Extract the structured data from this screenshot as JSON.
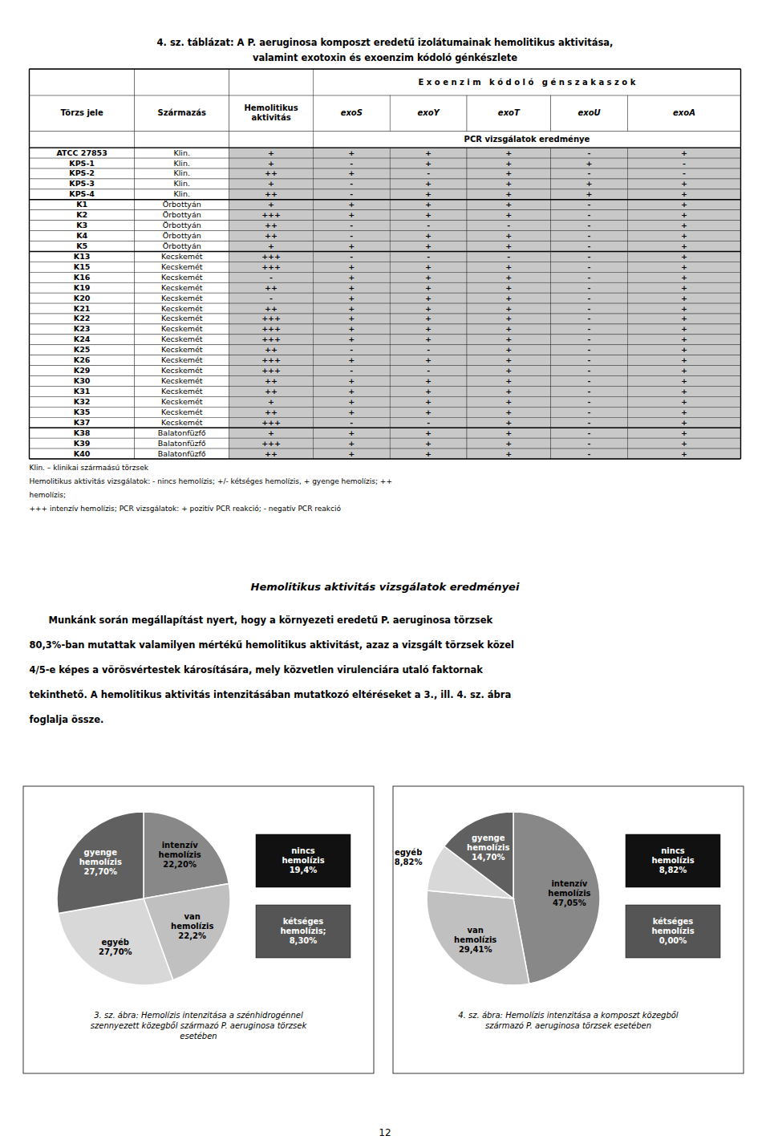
{
  "chart_data": [
    {
      "type": "table",
      "title": "4. sz. táblázat: A P. aeruginosa komposzt eredetű izolátumainak hemolitikus aktivitása,",
      "subtitle": "valamint exotoxin és exoenzim kódoló génkészlete",
      "group_header": "E x o e n z i m   k ó d o l ó   g é n s z a k a s z o k",
      "columns": [
        "Törzs jele",
        "Származás",
        "Hemolitikus\naktivitás",
        "exoS",
        "exoY",
        "exoT",
        "exoU",
        "exoA"
      ],
      "subheader": "PCR vizsgálatok eredménye",
      "rows": [
        [
          "ATCC 27853",
          "Klin.",
          "+",
          "+",
          "+",
          "+",
          "-",
          "+"
        ],
        [
          "KPS-1",
          "Klin.",
          "+",
          "-",
          "+",
          "+",
          "+",
          "-"
        ],
        [
          "KPS-2",
          "Klin.",
          "++",
          "+",
          "-",
          "+",
          "-",
          "-"
        ],
        [
          "KPS-3",
          "Klin.",
          "+",
          "-",
          "+",
          "+",
          "+",
          "+"
        ],
        [
          "KPS-4",
          "Klin.",
          "++",
          "-",
          "+",
          "+",
          "+",
          "+"
        ],
        [
          "K1",
          "Örbottyán",
          "+",
          "+",
          "+",
          "+",
          "-",
          "+"
        ],
        [
          "K2",
          "Örbottyán",
          "+++",
          "+",
          "+",
          "+",
          "-",
          "+"
        ],
        [
          "K3",
          "Örbottyán",
          "++",
          "-",
          "-",
          "-",
          "-",
          "+"
        ],
        [
          "K4",
          "Örbottyán",
          "++",
          "-",
          "+",
          "+",
          "-",
          "+"
        ],
        [
          "K5",
          "Örbottyán",
          "+",
          "+",
          "+",
          "+",
          "-",
          "+"
        ],
        [
          "K13",
          "Kecskemét",
          "+++",
          "-",
          "-",
          "-",
          "-",
          "+"
        ],
        [
          "K15",
          "Kecskemét",
          "+++",
          "+",
          "+",
          "+",
          "-",
          "+"
        ],
        [
          "K16",
          "Kecskemét",
          "-",
          "+",
          "+",
          "+",
          "-",
          "+"
        ],
        [
          "K19",
          "Kecskemét",
          "++",
          "+",
          "+",
          "+",
          "-",
          "+"
        ],
        [
          "K20",
          "Kecskemét",
          "-",
          "+",
          "+",
          "+",
          "-",
          "+"
        ],
        [
          "K21",
          "Kecskemét",
          "++",
          "+",
          "+",
          "+",
          "-",
          "+"
        ],
        [
          "K22",
          "Kecskemét",
          "+++",
          "+",
          "+",
          "+",
          "-",
          "+"
        ],
        [
          "K23",
          "Kecskemét",
          "+++",
          "+",
          "+",
          "+",
          "-",
          "+"
        ],
        [
          "K24",
          "Kecskemét",
          "+++",
          "+",
          "+",
          "+",
          "-",
          "+"
        ],
        [
          "K25",
          "Kecskemét",
          "++",
          "-",
          "-",
          "+",
          "-",
          "+"
        ],
        [
          "K26",
          "Kecskemét",
          "+++",
          "+",
          "+",
          "+",
          "-",
          "+"
        ],
        [
          "K29",
          "Kecskemét",
          "+++",
          "-",
          "-",
          "+",
          "-",
          "+"
        ],
        [
          "K30",
          "Kecskemét",
          "++",
          "+",
          "+",
          "+",
          "-",
          "+"
        ],
        [
          "K31",
          "Kecskemét",
          "++",
          "+",
          "+",
          "+",
          "-",
          "+"
        ],
        [
          "K32",
          "Kecskemét",
          "+",
          "+",
          "+",
          "+",
          "-",
          "+"
        ],
        [
          "K35",
          "Kecskemét",
          "++",
          "+",
          "+",
          "+",
          "-",
          "+"
        ],
        [
          "K37",
          "Kecskemét",
          "+++",
          "-",
          "-",
          "+",
          "-",
          "+"
        ],
        [
          "K38",
          "Balatonfüzfő",
          "+",
          "+",
          "+",
          "+",
          "-",
          "+"
        ],
        [
          "K39",
          "Balatonfüzfő",
          "+++",
          "+",
          "+",
          "+",
          "-",
          "+"
        ],
        [
          "K40",
          "Balatonfüzfő",
          "++",
          "+",
          "+",
          "+",
          "-",
          "+"
        ]
      ],
      "color": "#c8c8c8",
      "footnotes": [
        "Klin. – klinikai szármaású törzsek",
        "Hemolitikus aktivitás vizsgálatok: - nincs hemolízis; +/- kétséges hemolízis, + gyenge hemolízis; ++",
        "hemolízis;",
        "+++ intenzív hemolízis; PCR vizsgálatok: + pozitív PCR reakció; - negatív PCR reakció"
      ]
    },
    {
      "type": "text",
      "title": "Hemolitikus aktivitás vizsgálatok eredményei",
      "annotations": [
        "      Munkánk során megállapítást nyert, hogy a környezeti eredetű P. aeruginosa törzsek",
        "80,3%-ban mutattak valamilyen mértékű hemolitikus aktivitást, azaz a vizsgált törzsek közel",
        "4/5-e képes a vörösvértestek károsítására, mely közvetlen virulenciára utaló faktornak",
        "tekinthető. A hemolitikus aktivitás intenzitásában mutatkozó eltéréseket a 3., ill. 4. sz. ábra",
        "foglalja össze."
      ],
      "footer": "12"
    },
    {
      "type": "pie",
      "title": "3. sz. ábra: Hemolízis intenzitása a szénhidrogénnel\nszennyezett közegből származó P. aeruginosa törzsek\nesetében",
      "categories": [
        "intenzív\nhemolízis",
        "van\nhemolízis",
        "egyéb",
        "gyenge\nhemolízis"
      ],
      "values": [
        22.2,
        22.2,
        27.7,
        27.7
      ],
      "value_labels": [
        "22,20%",
        "22,2%",
        "27,70%",
        "27,70%"
      ],
      "colors": [
        "#888888",
        "#c0c0c0",
        "#d8d8d8",
        "#606060"
      ],
      "annotations": [
        {
          "text": "nincs\nhemolízis\n19,4%",
          "color": "#111111"
        },
        {
          "text": "kétséges\nhemolízis;\n8,30%",
          "color": "#555555"
        }
      ]
    },
    {
      "type": "pie",
      "title": "4. sz. ábra: Hemolízis intenzitása a komposzt közegből\nszármazó P. aeruginosa törzsek esetében",
      "categories": [
        "intenzív\nhemolízis",
        "van\nhemolízis",
        "egyéb",
        "gyenge\nhemolízis"
      ],
      "values": [
        47.05,
        29.41,
        8.82,
        14.7
      ],
      "value_labels": [
        "47,05%",
        "29,41%",
        "8,82%",
        "14,70%"
      ],
      "colors": [
        "#888888",
        "#c0c0c0",
        "#d8d8d8",
        "#606060"
      ],
      "annotations": [
        {
          "text": "nincs\nhemolízis\n8,82%",
          "color": "#111111"
        },
        {
          "text": "kétséges\nhemolízis\n0,00%",
          "color": "#555555"
        }
      ]
    }
  ]
}
